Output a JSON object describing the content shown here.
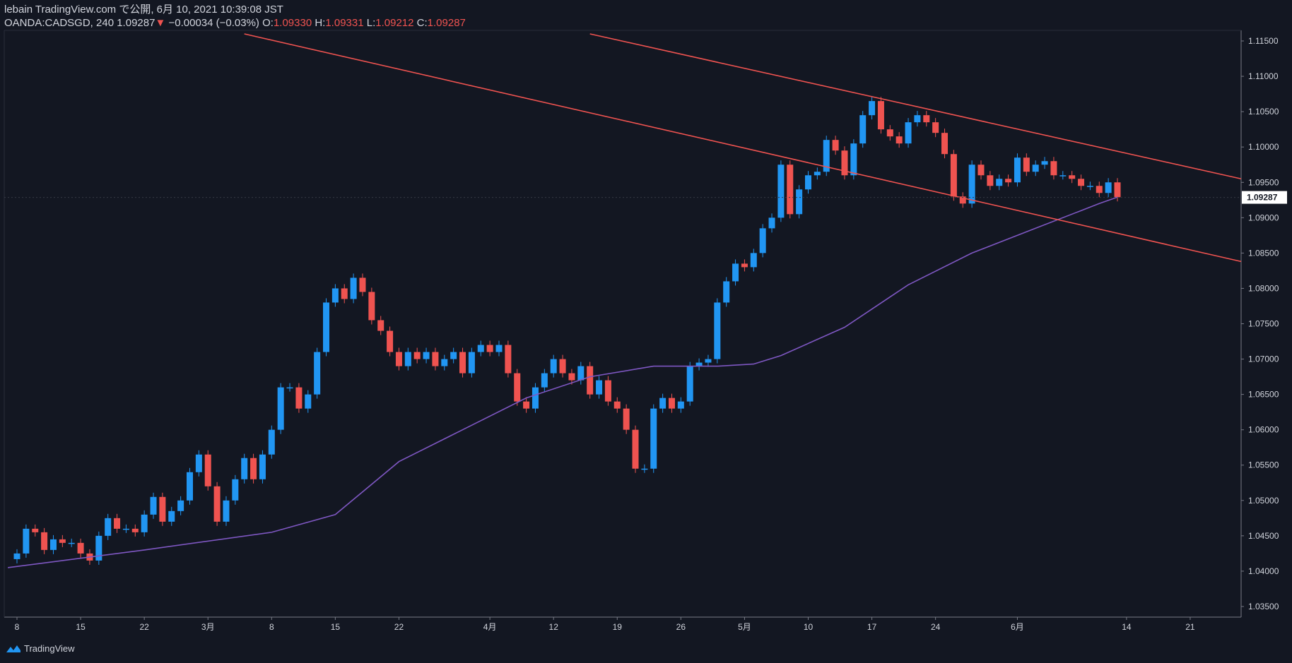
{
  "header": {
    "line1": "lebain TradingView.com で公開, 6月 10, 2021 10:39:08 JST",
    "symbol": "OANDA:CADSGD, 240",
    "last": "1.09287",
    "change_arrow": "▼",
    "change": "−0.00034 (−0.03%)",
    "o_label": "O:",
    "o_value": "1.09330",
    "h_label": "H:",
    "h_value": "1.09331",
    "l_label": "L:",
    "l_value": "1.09212",
    "c_label": "C:",
    "c_value": "1.09287"
  },
  "footer": {
    "brand": "TradingView",
    "logo_icon": "tradingview-logo-icon"
  },
  "colors": {
    "background": "#131722",
    "up": "#2196f3",
    "down": "#ef5350",
    "ma": "#7e57c2",
    "trendline": "#ef5350",
    "text": "#d1d4dc"
  },
  "chart_data": {
    "type": "candlestick",
    "ylim": [
      1.0335,
      1.1165
    ],
    "y_ticks": [
      "1.11500",
      "1.11000",
      "1.10500",
      "1.10000",
      "1.09500",
      "1.09000",
      "1.08500",
      "1.08000",
      "1.07500",
      "1.07000",
      "1.06500",
      "1.06000",
      "1.05500",
      "1.05000",
      "1.04500",
      "1.04000",
      "1.03500"
    ],
    "price_label": "1.09287",
    "x_ticks": [
      "8",
      "15",
      "22",
      "3月",
      "8",
      "15",
      "22",
      "4月",
      "12",
      "19",
      "26",
      "5月",
      "10",
      "17",
      "24",
      "6月",
      "14",
      "21"
    ],
    "x_tick_days": [
      0,
      7,
      14,
      21,
      28,
      35,
      42,
      52,
      59,
      66,
      73,
      80,
      87,
      94,
      101,
      110,
      122,
      129
    ],
    "xlim": [
      -1.4,
      134.6
    ],
    "closes": [
      [
        0,
        1.0425
      ],
      [
        1,
        1.046
      ],
      [
        2,
        1.0455
      ],
      [
        3,
        1.043
      ],
      [
        4,
        1.0445
      ],
      [
        5,
        1.044
      ],
      [
        6,
        1.044
      ],
      [
        7,
        1.0425
      ],
      [
        8,
        1.0415
      ],
      [
        9,
        1.045
      ],
      [
        10,
        1.0475
      ],
      [
        11,
        1.046
      ],
      [
        12,
        1.046
      ],
      [
        13,
        1.0455
      ],
      [
        14,
        1.048
      ],
      [
        15,
        1.0505
      ],
      [
        16,
        1.047
      ],
      [
        17,
        1.0485
      ],
      [
        18,
        1.05
      ],
      [
        19,
        1.054
      ],
      [
        20,
        1.0565
      ],
      [
        21,
        1.052
      ],
      [
        22,
        1.047
      ],
      [
        23,
        1.05
      ],
      [
        24,
        1.053
      ],
      [
        25,
        1.056
      ],
      [
        26,
        1.053
      ],
      [
        27,
        1.0565
      ],
      [
        28,
        1.06
      ],
      [
        29,
        1.066
      ],
      [
        30,
        1.066
      ],
      [
        31,
        1.063
      ],
      [
        32,
        1.065
      ],
      [
        33,
        1.071
      ],
      [
        34,
        1.078
      ],
      [
        35,
        1.08
      ],
      [
        36,
        1.0785
      ],
      [
        37,
        1.0815
      ],
      [
        38,
        1.0795
      ],
      [
        39,
        1.0755
      ],
      [
        40,
        1.074
      ],
      [
        41,
        1.071
      ],
      [
        42,
        1.069
      ],
      [
        43,
        1.071
      ],
      [
        44,
        1.07
      ],
      [
        45,
        1.071
      ],
      [
        46,
        1.069
      ],
      [
        47,
        1.07
      ],
      [
        48,
        1.071
      ],
      [
        49,
        1.068
      ],
      [
        50,
        1.071
      ],
      [
        51,
        1.072
      ],
      [
        52,
        1.071
      ],
      [
        53,
        1.072
      ],
      [
        54,
        1.068
      ],
      [
        55,
        1.064
      ],
      [
        56,
        1.063
      ],
      [
        57,
        1.066
      ],
      [
        58,
        1.068
      ],
      [
        59,
        1.07
      ],
      [
        60,
        1.068
      ],
      [
        61,
        1.067
      ],
      [
        62,
        1.069
      ],
      [
        63,
        1.065
      ],
      [
        64,
        1.067
      ],
      [
        65,
        1.064
      ],
      [
        66,
        1.063
      ],
      [
        67,
        1.06
      ],
      [
        68,
        1.0545
      ],
      [
        69,
        1.0545
      ],
      [
        70,
        1.063
      ],
      [
        71,
        1.0645
      ],
      [
        72,
        1.063
      ],
      [
        73,
        1.064
      ],
      [
        74,
        1.069
      ],
      [
        75,
        1.0695
      ],
      [
        76,
        1.07
      ],
      [
        77,
        1.078
      ],
      [
        78,
        1.081
      ],
      [
        79,
        1.0835
      ],
      [
        80,
        1.083
      ],
      [
        81,
        1.085
      ],
      [
        82,
        1.0885
      ],
      [
        83,
        1.09
      ],
      [
        84,
        1.0975
      ],
      [
        85,
        1.0905
      ],
      [
        86,
        1.094
      ],
      [
        87,
        1.096
      ],
      [
        88,
        1.0965
      ],
      [
        89,
        1.101
      ],
      [
        90,
        1.0995
      ],
      [
        91,
        1.096
      ],
      [
        92,
        1.1005
      ],
      [
        93,
        1.1045
      ],
      [
        94,
        1.1065
      ],
      [
        95,
        1.1025
      ],
      [
        96,
        1.1015
      ],
      [
        97,
        1.1005
      ],
      [
        98,
        1.1035
      ],
      [
        99,
        1.1045
      ],
      [
        100,
        1.1035
      ],
      [
        101,
        1.102
      ],
      [
        102,
        1.099
      ],
      [
        103,
        1.093
      ],
      [
        104,
        1.092
      ],
      [
        105,
        1.0975
      ],
      [
        106,
        1.096
      ],
      [
        107,
        1.0945
      ],
      [
        108,
        1.0955
      ],
      [
        109,
        1.095
      ],
      [
        110,
        1.0985
      ],
      [
        111,
        1.0965
      ],
      [
        112,
        1.0975
      ],
      [
        113,
        1.098
      ],
      [
        114,
        1.096
      ],
      [
        115,
        1.096
      ],
      [
        116,
        1.0955
      ],
      [
        117,
        1.0945
      ],
      [
        118,
        1.0945
      ],
      [
        119,
        1.0935
      ],
      [
        120,
        1.095
      ],
      [
        121,
        1.0929
      ]
    ],
    "moving_average": [
      [
        -1,
        1.0405
      ],
      [
        14,
        1.043
      ],
      [
        28,
        1.0455
      ],
      [
        35,
        1.048
      ],
      [
        42,
        1.0555
      ],
      [
        49,
        1.06
      ],
      [
        56,
        1.0645
      ],
      [
        63,
        1.0675
      ],
      [
        70,
        1.069
      ],
      [
        77,
        1.069
      ],
      [
        81,
        1.0693
      ],
      [
        84,
        1.0705
      ],
      [
        91,
        1.0745
      ],
      [
        98,
        1.0805
      ],
      [
        105,
        1.085
      ],
      [
        112,
        1.0885
      ],
      [
        119,
        1.092
      ],
      [
        121,
        1.0929
      ]
    ],
    "trendlines": [
      {
        "from": [
          25,
          1.116
        ],
        "to": [
          134.6,
          1.0838
        ]
      },
      {
        "from": [
          63,
          1.116
        ],
        "to": [
          134.6,
          1.0955
        ]
      }
    ]
  }
}
